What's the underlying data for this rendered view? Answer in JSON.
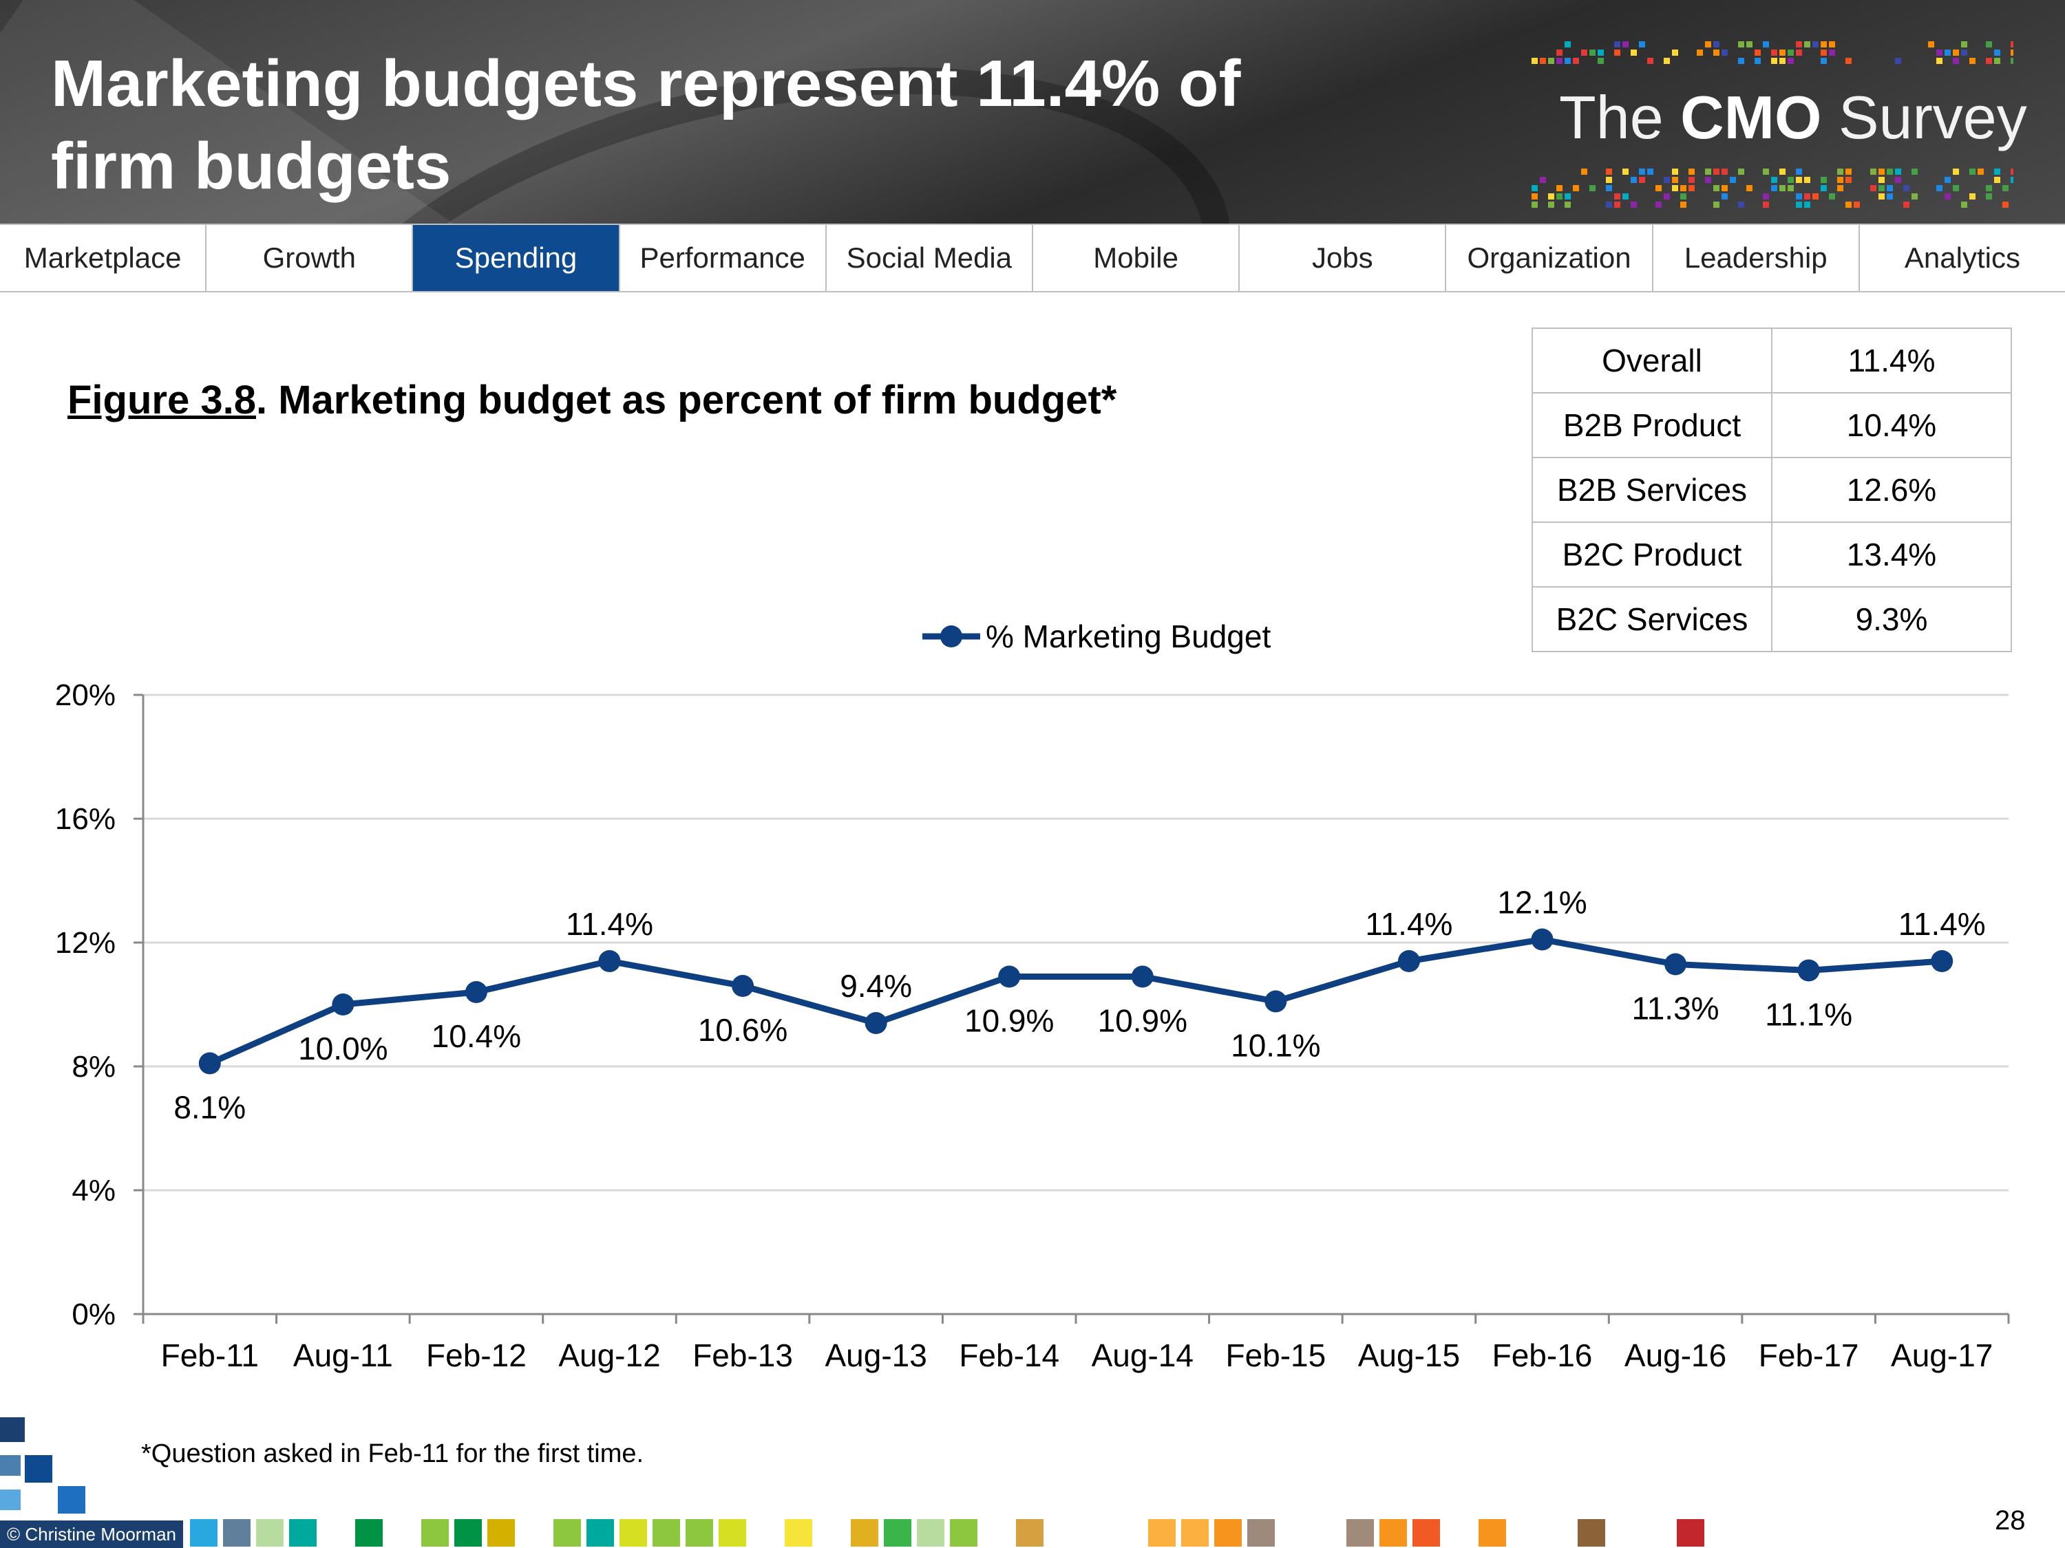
{
  "header": {
    "title": "Marketing budgets represent 11.4% of firm budgets",
    "logo_text_pre": "The ",
    "logo_text_bold": "CMO",
    "logo_text_post": " Survey"
  },
  "nav": {
    "tabs": [
      {
        "label": "Marketplace",
        "active": false
      },
      {
        "label": "Growth",
        "active": false
      },
      {
        "label": "Spending",
        "active": true
      },
      {
        "label": "Performance",
        "active": false
      },
      {
        "label": "Social Media",
        "active": false
      },
      {
        "label": "Mobile",
        "active": false
      },
      {
        "label": "Jobs",
        "active": false
      },
      {
        "label": "Organization",
        "active": false
      },
      {
        "label": "Leadership",
        "active": false
      },
      {
        "label": "Analytics",
        "active": false
      }
    ]
  },
  "figure": {
    "number": "Figure 3.8",
    "text": ".  Marketing budget as percent of firm budget*"
  },
  "summary_table": [
    {
      "segment": "Overall",
      "value": "11.4%"
    },
    {
      "segment": "B2B Product",
      "value": "10.4%"
    },
    {
      "segment": "B2B Services",
      "value": "12.6%"
    },
    {
      "segment": "B2C Product",
      "value": "13.4%"
    },
    {
      "segment": "B2C Services",
      "value": "9.3%"
    }
  ],
  "chart_data": {
    "type": "line",
    "title": "Marketing budget as percent of firm budget*",
    "categories": [
      "Feb-11",
      "Aug-11",
      "Feb-12",
      "Aug-12",
      "Feb-13",
      "Aug-13",
      "Feb-14",
      "Aug-14",
      "Feb-15",
      "Aug-15",
      "Feb-16",
      "Aug-16",
      "Feb-17",
      "Aug-17"
    ],
    "series": [
      {
        "name": "% Marketing Budget",
        "values": [
          8.1,
          10.0,
          10.4,
          11.4,
          10.6,
          9.4,
          10.9,
          10.9,
          10.1,
          11.4,
          12.1,
          11.3,
          11.1,
          11.4
        ],
        "labels": [
          "8.1%",
          "10.0%",
          "10.4%",
          "11.4%",
          "10.6%",
          "9.4%",
          "10.9%",
          "10.9%",
          "10.1%",
          "11.4%",
          "12.1%",
          "11.3%",
          "11.1%",
          "11.4%"
        ],
        "label_position": [
          "below",
          "below",
          "below",
          "above",
          "below",
          "above",
          "below",
          "below",
          "below",
          "above",
          "above",
          "below",
          "below",
          "above"
        ],
        "color": "#0e3f80"
      }
    ],
    "ylim": [
      0,
      20
    ],
    "yticks": [
      0,
      4,
      8,
      12,
      16,
      20
    ],
    "ytick_labels": [
      "0%",
      "4%",
      "8%",
      "12%",
      "16%",
      "20%"
    ],
    "grid": true,
    "legend": "top-center",
    "xlabel": "",
    "ylabel": ""
  },
  "footnote": "*Question asked in Feb-11 for the first time.",
  "copyright": "© Christine Moorman",
  "page_number": "28",
  "colors": {
    "accent": "#0d4a8f",
    "line": "#0e3f80",
    "grid": "#d9d9d9"
  }
}
